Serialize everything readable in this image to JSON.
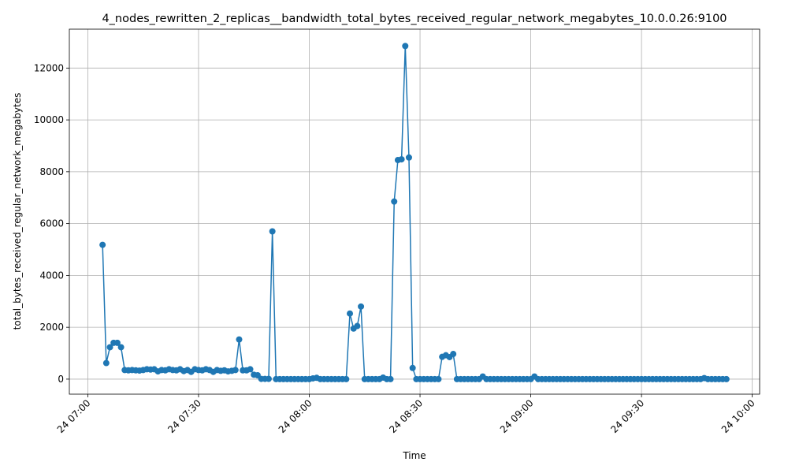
{
  "chart_data": {
    "type": "line",
    "title": "4_nodes_rewritten_2_replicas__bandwidth_total_bytes_received_regular_network_megabytes_10.0.0.26:9100",
    "xlabel": "Time",
    "ylabel": "total_bytes_received_regular_network_megabytes",
    "color": "#1f77b4",
    "grid": true,
    "x": [
      "24 07:04",
      "24 07:05",
      "24 07:06",
      "24 07:07",
      "24 07:08",
      "24 07:09",
      "24 07:10",
      "24 07:11",
      "24 07:12",
      "24 07:13",
      "24 07:14",
      "24 07:15",
      "24 07:16",
      "24 07:17",
      "24 07:18",
      "24 07:19",
      "24 07:20",
      "24 07:21",
      "24 07:22",
      "24 07:23",
      "24 07:24",
      "24 07:25",
      "24 07:26",
      "24 07:27",
      "24 07:28",
      "24 07:29",
      "24 07:30",
      "24 07:31",
      "24 07:32",
      "24 07:33",
      "24 07:34",
      "24 07:35",
      "24 07:36",
      "24 07:37",
      "24 07:38",
      "24 07:39",
      "24 07:40",
      "24 07:41",
      "24 07:42",
      "24 07:43",
      "24 07:44",
      "24 07:45",
      "24 07:46",
      "24 07:47",
      "24 07:48",
      "24 07:49",
      "24 07:50",
      "24 07:51",
      "24 07:52",
      "24 07:53",
      "24 07:54",
      "24 07:55",
      "24 07:56",
      "24 07:57",
      "24 07:58",
      "24 07:59",
      "24 08:00",
      "24 08:01",
      "24 08:02",
      "24 08:03",
      "24 08:04",
      "24 08:05",
      "24 08:06",
      "24 08:07",
      "24 08:08",
      "24 08:09",
      "24 08:10",
      "24 08:11",
      "24 08:12",
      "24 08:13",
      "24 08:14",
      "24 08:15",
      "24 08:16",
      "24 08:17",
      "24 08:18",
      "24 08:19",
      "24 08:20",
      "24 08:21",
      "24 08:22",
      "24 08:23",
      "24 08:24",
      "24 08:25",
      "24 08:26",
      "24 08:27",
      "24 08:28",
      "24 08:29",
      "24 08:30",
      "24 08:31",
      "24 08:32",
      "24 08:33",
      "24 08:34",
      "24 08:35",
      "24 08:36",
      "24 08:37",
      "24 08:38",
      "24 08:39",
      "24 08:40",
      "24 08:41",
      "24 08:42",
      "24 08:43",
      "24 08:44",
      "24 08:45",
      "24 08:46",
      "24 08:47",
      "24 08:48",
      "24 08:49",
      "24 08:50",
      "24 08:51",
      "24 08:52",
      "24 08:53",
      "24 08:54",
      "24 08:55",
      "24 08:56",
      "24 08:57",
      "24 08:58",
      "24 08:59",
      "24 09:00",
      "24 09:01",
      "24 09:02",
      "24 09:03",
      "24 09:04",
      "24 09:05",
      "24 09:06",
      "24 09:07",
      "24 09:08",
      "24 09:09",
      "24 09:10",
      "24 09:11",
      "24 09:12",
      "24 09:13",
      "24 09:14",
      "24 09:15",
      "24 09:16",
      "24 09:17",
      "24 09:18",
      "24 09:19",
      "24 09:20",
      "24 09:21",
      "24 09:22",
      "24 09:23",
      "24 09:24",
      "24 09:25",
      "24 09:26",
      "24 09:27",
      "24 09:28",
      "24 09:29",
      "24 09:30",
      "24 09:31",
      "24 09:32",
      "24 09:33",
      "24 09:34",
      "24 09:35",
      "24 09:36",
      "24 09:37",
      "24 09:38",
      "24 09:39",
      "24 09:40",
      "24 09:41",
      "24 09:42",
      "24 09:43",
      "24 09:44",
      "24 09:45",
      "24 09:46",
      "24 09:47",
      "24 09:48",
      "24 09:49",
      "24 09:50",
      "24 09:51",
      "24 09:52",
      "24 09:53"
    ],
    "values": [
      5180,
      620,
      1230,
      1400,
      1400,
      1230,
      350,
      340,
      350,
      340,
      330,
      350,
      380,
      370,
      380,
      300,
      350,
      340,
      380,
      350,
      340,
      380,
      310,
      350,
      280,
      380,
      350,
      340,
      380,
      350,
      280,
      350,
      320,
      340,
      300,
      320,
      350,
      1530,
      340,
      340,
      380,
      170,
      150,
      10,
      10,
      10,
      5700,
      0,
      0,
      0,
      0,
      0,
      0,
      0,
      0,
      0,
      0,
      30,
      50,
      0,
      0,
      0,
      0,
      0,
      0,
      0,
      0,
      2530,
      1950,
      2050,
      2800,
      0,
      0,
      0,
      0,
      0,
      60,
      0,
      0,
      6850,
      8450,
      8480,
      12850,
      8550,
      430,
      0,
      0,
      0,
      0,
      0,
      0,
      0,
      860,
      920,
      850,
      970,
      0,
      0,
      0,
      0,
      0,
      0,
      0,
      100,
      0,
      0,
      0,
      0,
      0,
      0,
      0,
      0,
      0,
      0,
      0,
      0,
      0,
      100,
      0,
      0,
      0,
      0,
      0,
      0,
      0,
      0,
      0,
      0,
      0,
      0,
      0,
      0,
      0,
      0,
      0,
      0,
      0,
      0,
      0,
      0,
      0,
      0,
      0,
      0,
      0,
      0,
      0,
      0,
      0,
      0,
      0,
      0,
      0,
      0,
      0,
      0,
      0,
      0,
      0,
      0,
      0,
      0,
      0,
      40,
      0,
      0,
      0,
      0,
      0,
      0
    ],
    "xlim": [
      "24 06:55",
      "24 10:02"
    ],
    "xticks": [
      "24 07:00",
      "24 07:30",
      "24 08:00",
      "24 08:30",
      "24 09:00",
      "24 09:30",
      "24 10:00"
    ],
    "ylim": [
      -580,
      13500
    ],
    "yticks": [
      0,
      2000,
      4000,
      6000,
      8000,
      10000,
      12000
    ]
  }
}
